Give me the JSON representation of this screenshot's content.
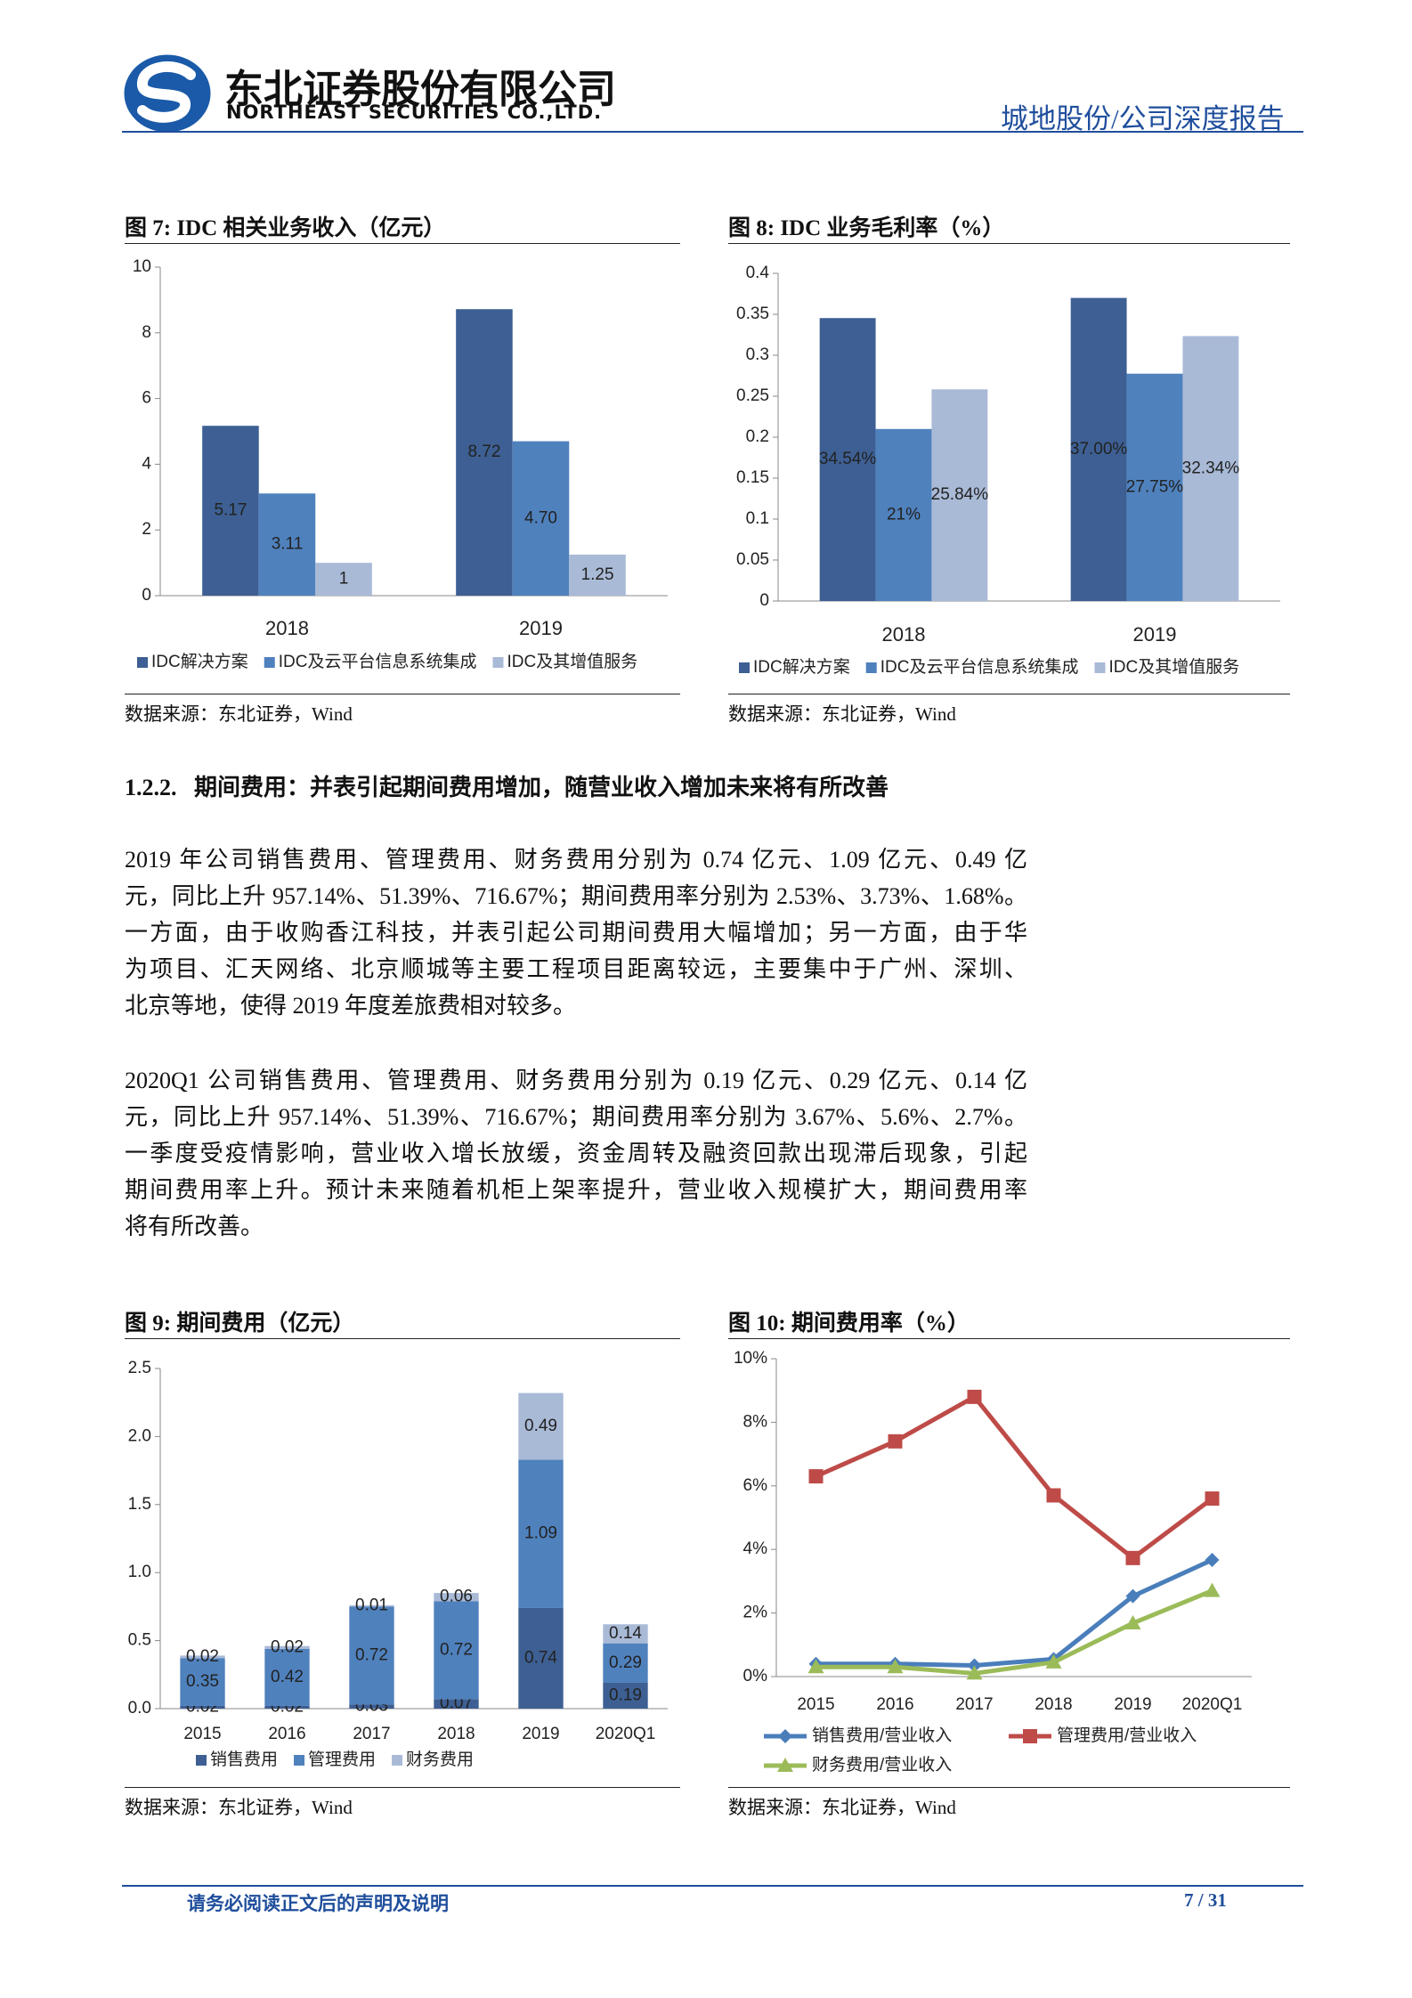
{
  "header": {
    "company": "东北证券股份有限公司",
    "company_en": "NORTHEAST SECURITIES CO.,LTD.",
    "report": "城地股份/公司深度报告"
  },
  "figures": [
    {
      "caption": "图 7: IDC 相关业务收入（亿元）",
      "source": "数据来源：东北证券，Wind",
      "chart_data": {
        "type": "bar",
        "categories": [
          "2018",
          "2019"
        ],
        "series": [
          {
            "name": "IDC解决方案",
            "color": "#3d5f93",
            "values": [
              5.17,
              8.72
            ]
          },
          {
            "name": "IDC及云平台信息系统集成",
            "color": "#4f81bd",
            "values": [
              3.11,
              4.7
            ],
            "value_labels": [
              "3.11",
              "4.70"
            ]
          },
          {
            "name": "IDC及其增值服务",
            "color": "#a9bad7",
            "values": [
              1,
              1.25
            ]
          }
        ],
        "ylim": [
          0,
          10
        ],
        "yticks": [
          0,
          2,
          4,
          6,
          8,
          10
        ],
        "legend": "bottom"
      }
    },
    {
      "caption": "图 8: IDC 业务毛利率（%）",
      "source": "数据来源：东北证券，Wind",
      "chart_data": {
        "type": "bar",
        "categories": [
          "2018",
          "2019"
        ],
        "series": [
          {
            "name": "IDC解决方案",
            "color": "#3d5f93",
            "values": [
              0.3454,
              0.37
            ],
            "value_labels": [
              "34.54%",
              "37.00%"
            ]
          },
          {
            "name": "IDC及云平台信息系统集成",
            "color": "#4f81bd",
            "values": [
              0.21,
              0.2775
            ],
            "value_labels": [
              "21%",
              "27.75%"
            ]
          },
          {
            "name": "IDC及其增值服务",
            "color": "#a9bad7",
            "values": [
              0.2584,
              0.3234
            ],
            "value_labels": [
              "25.84%",
              "32.34%"
            ]
          }
        ],
        "ylim": [
          0,
          0.4
        ],
        "yticks": [
          0,
          0.05,
          0.1,
          0.15,
          0.2,
          0.25,
          0.3,
          0.35,
          0.4
        ],
        "legend": "bottom"
      }
    },
    {
      "caption": "图 9: 期间费用（亿元）",
      "source": "数据来源：东北证券，Wind",
      "chart_data": {
        "type": "bar",
        "stacked": true,
        "categories": [
          "2015",
          "2016",
          "2017",
          "2018",
          "2019",
          "2020Q1"
        ],
        "series": [
          {
            "name": "销售费用",
            "color": "#3d5f93",
            "values": [
              0.02,
              0.02,
              0.03,
              0.07,
              0.74,
              0.19
            ]
          },
          {
            "name": "管理费用",
            "color": "#4f81bd",
            "values": [
              0.35,
              0.42,
              0.72,
              0.72,
              1.09,
              0.29
            ]
          },
          {
            "name": "财务费用",
            "color": "#a9bad7",
            "values": [
              0.02,
              0.02,
              0.01,
              0.06,
              0.49,
              0.14
            ]
          }
        ],
        "ylim": [
          0,
          2.5
        ],
        "yticks": [
          {
            "value": 0,
            "label": "0.0"
          },
          0.5,
          {
            "value": 1,
            "label": "1.0"
          },
          1.5,
          {
            "value": 2,
            "label": "2.0"
          },
          2.5
        ],
        "legend": "bottom"
      }
    },
    {
      "caption": "图 10: 期间费用率（%）",
      "source": "数据来源：东北证券，Wind",
      "chart_data": {
        "type": "line",
        "categories": [
          "2015",
          "2016",
          "2017",
          "2018",
          "2019",
          "2020Q1"
        ],
        "series": [
          {
            "name": "销售费用/营业收入",
            "color": "#4a7ebb",
            "values": [
              0.4,
              0.4,
              0.35,
              0.55,
              2.53,
              3.67
            ]
          },
          {
            "name": "管理费用/营业收入",
            "color": "#be4b48",
            "values": [
              6.3,
              7.4,
              8.8,
              5.7,
              3.73,
              5.6
            ]
          },
          {
            "name": "财务费用/营业收入",
            "color": "#9bbb59",
            "values": [
              0.3,
              0.3,
              0.1,
              0.45,
              1.68,
              2.7
            ]
          }
        ],
        "ylim": [
          0,
          10
        ],
        "yticks": [
          {
            "value": 0,
            "label": "0%"
          },
          {
            "value": 2,
            "label": "2%"
          },
          {
            "value": 4,
            "label": "4%"
          },
          {
            "value": 6,
            "label": "6%"
          },
          {
            "value": 8,
            "label": "8%"
          },
          {
            "value": 10,
            "label": "10%"
          }
        ],
        "legend": "bottom"
      }
    }
  ],
  "section": {
    "number": "1.2.2.",
    "title": "期间费用：并表引起期间费用增加，随营业收入增加未来将有所改善"
  },
  "paragraphs": [
    [
      "2019 年公司销售费用、管理费用、财务费用分别为 0.74 亿元、1.09 亿元、0.49 亿",
      "元，同比上升 957.14%、51.39%、716.67%；期间费用率分别为 2.53%、3.73%、1.68%。",
      "一方面，由于收购香江科技，并表引起公司期间费用大幅增加；另一方面，由于华",
      "为项目、汇天网络、北京顺城等主要工程项目距离较远，主要集中于广州、深圳、",
      "北京等地，使得 2019 年度差旅费相对较多。"
    ],
    [
      "2020Q1 公司销售费用、管理费用、财务费用分别为 0.19 亿元、0.29 亿元、0.14 亿",
      "元，同比上升 957.14%、51.39%、716.67%；期间费用率分别为 3.67%、5.6%、2.7%。",
      "一季度受疫情影响，营业收入增长放缓，资金周转及融资回款出现滞后现象，引起",
      "期间费用率上升。预计未来随着机柜上架率提升，营业收入规模扩大，期间费用率",
      "将有所改善。"
    ]
  ],
  "footer": {
    "notice": "请务必阅读正文后的声明及说明",
    "page": "7 / 31"
  }
}
